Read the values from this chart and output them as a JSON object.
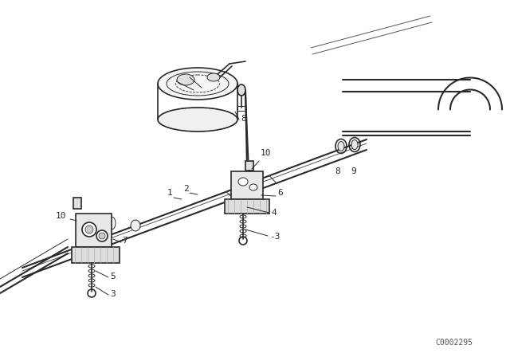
{
  "bg_color": "#ffffff",
  "line_color": "#2a2a2a",
  "watermark": "C0002295",
  "fig_width": 6.4,
  "fig_height": 4.48,
  "dpi": 100
}
